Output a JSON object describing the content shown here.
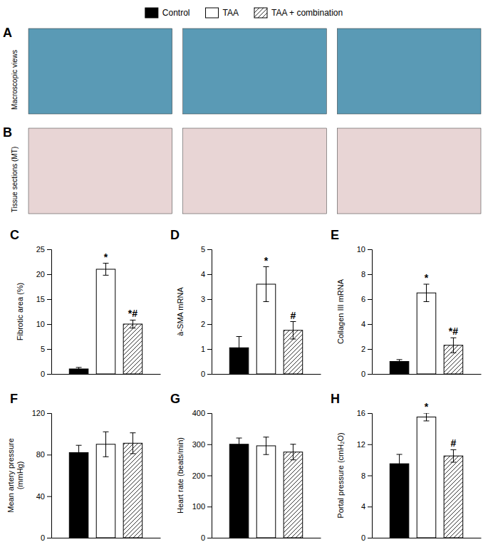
{
  "chart_data": [
    {
      "type": "image",
      "title": "A",
      "subtitle": "Macroscopic views",
      "color": "#5a9ab5"
    },
    {
      "type": "image",
      "title": "B",
      "subtitle": "Tissue sections (MT)",
      "color": "#e8d5d5"
    },
    {
      "type": "bar",
      "title": "C",
      "y_label": "Fibrotic area (%)",
      "categories": [
        null
      ],
      "tick_labels": "y",
      "legend": "top",
      "series": [
        {
          "name": "Control",
          "color": "black",
          "values": [
            1.0
          ],
          "errors": [
            0.3
          ]
        },
        {
          "name": "TAA",
          "color": "white",
          "values": [
            21.0
          ],
          "errors": [
            1.2
          ]
        },
        {
          "name": "TAA + combination",
          "color": "white",
          "values": [
            10.0
          ],
          "errors": [
            0.8
          ]
        }
      ],
      "ylim": [
        0,
        25
      ],
      "yticks": [
        0,
        5,
        10,
        15,
        20,
        25
      ],
      "annotations": [
        null,
        "*",
        "*#"
      ]
    },
    {
      "type": "bar",
      "title": "D",
      "y_label": "à-SMA mRNA",
      "categories": [
        null
      ],
      "tick_labels": "y",
      "series": [
        {
          "color": "black",
          "values": [
            1.05
          ],
          "errors": [
            0.45
          ]
        },
        {
          "color": "white",
          "values": [
            3.6
          ],
          "errors": [
            0.7
          ]
        },
        {
          "color": "white",
          "values": [
            1.75
          ],
          "errors": [
            0.35
          ]
        }
      ],
      "ylim": [
        0,
        5
      ],
      "yticks": [
        0,
        1,
        2,
        3,
        4,
        5
      ],
      "annotations": [
        null,
        "*",
        "#"
      ]
    },
    {
      "type": "bar",
      "title": "E",
      "y_label": "Collagen III mRNA",
      "categories": [
        null
      ],
      "tick_labels": "y",
      "series": [
        {
          "color": "black",
          "values": [
            1.0
          ],
          "errors": [
            0.15
          ]
        },
        {
          "color": "white",
          "values": [
            6.5
          ],
          "errors": [
            0.7
          ]
        },
        {
          "color": "white",
          "values": [
            2.3
          ],
          "errors": [
            0.6
          ]
        }
      ],
      "ylim": [
        0,
        10
      ],
      "yticks": [
        0,
        2,
        4,
        6,
        8,
        10
      ],
      "annotations": [
        null,
        "*",
        "*#"
      ]
    },
    {
      "type": "bar",
      "title": "F",
      "y_label": "Mean artery pressure\n(mmHg)",
      "categories": [
        null
      ],
      "tick_labels": "y",
      "series": [
        {
          "color": "black",
          "values": [
            82.0
          ],
          "errors": [
            7.0
          ]
        },
        {
          "color": "white",
          "values": [
            90.0
          ],
          "errors": [
            12.0
          ]
        },
        {
          "color": "white",
          "values": [
            91.0
          ],
          "errors": [
            10.0
          ]
        }
      ],
      "ylim": [
        0,
        120
      ],
      "yticks": [
        0,
        40,
        80,
        120
      ]
    },
    {
      "type": "bar",
      "title": "G",
      "y_label": "Heart rate (beats/min)",
      "categories": [
        null
      ],
      "tick_labels": "y",
      "series": [
        {
          "color": "black",
          "values": [
            300.0
          ],
          "errors": [
            20.0
          ]
        },
        {
          "color": "white",
          "values": [
            295.0
          ],
          "errors": [
            28.0
          ]
        },
        {
          "color": "white",
          "values": [
            275.0
          ],
          "errors": [
            25.0
          ]
        }
      ],
      "ylim": [
        0,
        400
      ],
      "yticks": [
        0,
        100,
        200,
        300,
        400
      ]
    },
    {
      "type": "bar",
      "title": "H",
      "y_label": "Portal pressure (cmH₂O)",
      "categories": [
        null
      ],
      "tick_labels": "y",
      "series": [
        {
          "color": "black",
          "values": [
            9.5
          ],
          "errors": [
            1.2
          ]
        },
        {
          "color": "white",
          "values": [
            15.5
          ],
          "errors": [
            0.5
          ]
        },
        {
          "color": "white",
          "values": [
            10.5
          ],
          "errors": [
            0.8
          ]
        }
      ],
      "ylim": [
        0,
        16
      ],
      "yticks": [
        0,
        4,
        8,
        12,
        16
      ],
      "annotations": [
        null,
        "*",
        "#"
      ]
    }
  ]
}
